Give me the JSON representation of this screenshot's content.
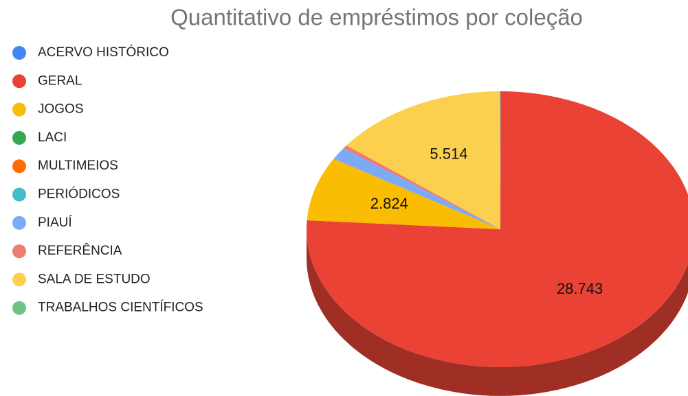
{
  "chart_data": {
    "type": "pie",
    "title": "Quantitativo de empréstimos por coleção",
    "categories": [
      "ACERVO HISTÓRICO",
      "GERAL",
      "JOGOS",
      "LACI",
      "MULTIMEIOS",
      "PERIÓDICOS",
      "PIAUÍ",
      "REFERÊNCIA",
      "SALA DE ESTUDO",
      "TRABALHOS CIENTÍFICOS"
    ],
    "values": [
      10,
      28743,
      2824,
      5,
      5,
      5,
      550,
      150,
      5514,
      10
    ],
    "value_labels": [
      null,
      "28.743",
      "2.824",
      null,
      null,
      null,
      null,
      null,
      "5.514",
      null
    ],
    "colors": [
      "#4285f4",
      "#ea4335",
      "#fbbc04",
      "#34a853",
      "#ff6d01",
      "#46bdc6",
      "#7baaf7",
      "#f07b72",
      "#fcd04f",
      "#71c287"
    ],
    "legend": "left"
  }
}
